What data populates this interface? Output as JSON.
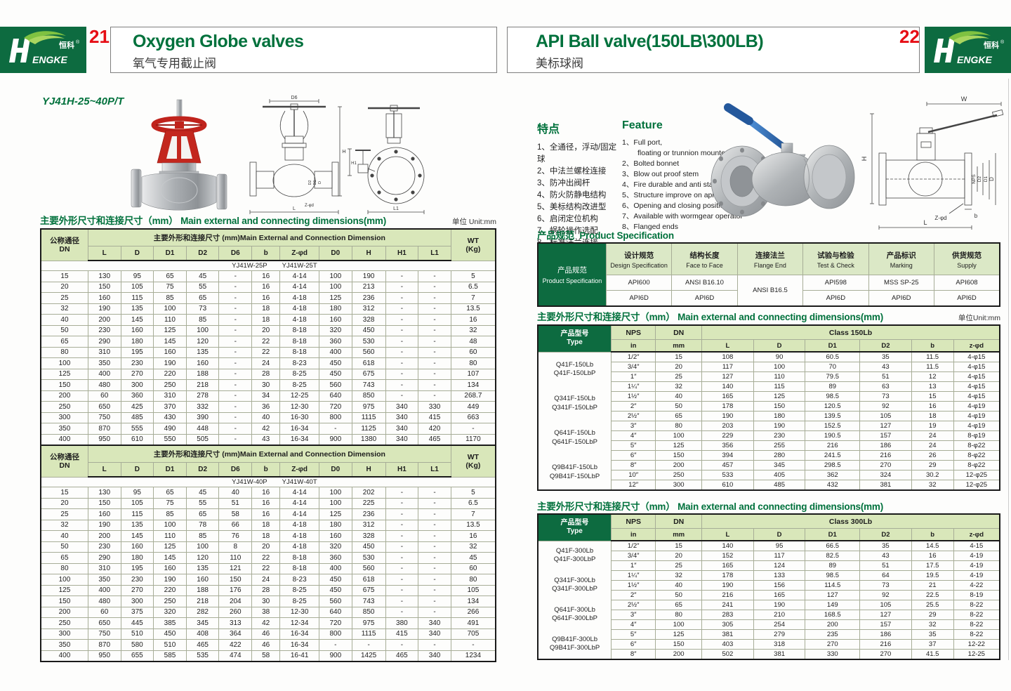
{
  "brand": {
    "logo_cn": "恒科",
    "reg": "®",
    "logo_en": "ENGKE"
  },
  "left_page": {
    "number": "21",
    "title": "Oxygen Globe valves",
    "subtitle": "氧气专用截止阀",
    "model_code": "YJ41H-25~40P/T",
    "dim_title_cn": "主要外形尺寸和连接尺寸（mm）",
    "dim_title_en": "Main external and connecting dimensions(mm)",
    "unit": "单位 Unit:mm",
    "table": {
      "dn_header_cn": "公称通径",
      "dn_header_en": "DN",
      "group_header": "主要外形和连接尺寸 (mm)Main External and Connection Dimension",
      "wt_header": "WT",
      "wt_header2": "(Kg)",
      "columns": [
        "L",
        "D",
        "D1",
        "D2",
        "D6",
        "b",
        "Z-φd",
        "D0",
        "H",
        "H1",
        "L1"
      ],
      "sections": [
        {
          "model_p": "YJ41W-25P",
          "model_t": "YJ41W-25T",
          "rows": [
            [
              "15",
              "130",
              "95",
              "65",
              "45",
              "-",
              "16",
              "4-14",
              "100",
              "190",
              "-",
              "-",
              "5"
            ],
            [
              "20",
              "150",
              "105",
              "75",
              "55",
              "-",
              "16",
              "4-14",
              "100",
              "213",
              "-",
              "-",
              "6.5"
            ],
            [
              "25",
              "160",
              "115",
              "85",
              "65",
              "-",
              "16",
              "4-18",
              "125",
              "236",
              "-",
              "-",
              "7"
            ],
            [
              "32",
              "190",
              "135",
              "100",
              "73",
              "-",
              "18",
              "4-18",
              "180",
              "312",
              "-",
              "-",
              "13.5"
            ],
            [
              "40",
              "200",
              "145",
              "110",
              "85",
              "-",
              "18",
              "4-18",
              "160",
              "328",
              "-",
              "-",
              "16"
            ],
            [
              "50",
              "230",
              "160",
              "125",
              "100",
              "-",
              "20",
              "8-18",
              "320",
              "450",
              "-",
              "-",
              "32"
            ],
            [
              "65",
              "290",
              "180",
              "145",
              "120",
              "-",
              "22",
              "8-18",
              "360",
              "530",
              "-",
              "-",
              "48"
            ],
            [
              "80",
              "310",
              "195",
              "160",
              "135",
              "-",
              "22",
              "8-18",
              "400",
              "560",
              "-",
              "-",
              "60"
            ],
            [
              "100",
              "350",
              "230",
              "190",
              "160",
              "-",
              "24",
              "8-23",
              "450",
              "618",
              "-",
              "-",
              "80"
            ],
            [
              "125",
              "400",
              "270",
              "220",
              "188",
              "-",
              "28",
              "8-25",
              "450",
              "675",
              "-",
              "-",
              "107"
            ],
            [
              "150",
              "480",
              "300",
              "250",
              "218",
              "-",
              "30",
              "8-25",
              "560",
              "743",
              "-",
              "-",
              "134"
            ],
            [
              "200",
              "60",
              "360",
              "310",
              "278",
              "-",
              "34",
              "12-25",
              "640",
              "850",
              "-",
              "-",
              "268.7"
            ],
            [
              "250",
              "650",
              "425",
              "370",
              "332",
              "-",
              "36",
              "12-30",
              "720",
              "975",
              "340",
              "330",
              "449"
            ],
            [
              "300",
              "750",
              "485",
              "430",
              "390",
              "-",
              "40",
              "16-30",
              "800",
              "1115",
              "340",
              "415",
              "663"
            ],
            [
              "350",
              "870",
              "555",
              "490",
              "448",
              "-",
              "42",
              "16-34",
              "-",
              "1125",
              "340",
              "420",
              "-"
            ],
            [
              "400",
              "950",
              "610",
              "550",
              "505",
              "-",
              "43",
              "16-34",
              "900",
              "1380",
              "340",
              "465",
              "1170"
            ]
          ]
        },
        {
          "model_p": "YJ41W-40P",
          "model_t": "YJ41W-40T",
          "rows": [
            [
              "15",
              "130",
              "95",
              "65",
              "45",
              "40",
              "16",
              "4-14",
              "100",
              "202",
              "-",
              "-",
              "5"
            ],
            [
              "20",
              "150",
              "105",
              "75",
              "55",
              "51",
              "16",
              "4-14",
              "100",
              "225",
              "-",
              "-",
              "6.5"
            ],
            [
              "25",
              "160",
              "115",
              "85",
              "65",
              "58",
              "16",
              "4-14",
              "125",
              "236",
              "-",
              "-",
              "7"
            ],
            [
              "32",
              "190",
              "135",
              "100",
              "78",
              "66",
              "18",
              "4-18",
              "180",
              "312",
              "-",
              "-",
              "13.5"
            ],
            [
              "40",
              "200",
              "145",
              "110",
              "85",
              "76",
              "18",
              "4-18",
              "160",
              "328",
              "-",
              "-",
              "16"
            ],
            [
              "50",
              "230",
              "160",
              "125",
              "100",
              "8",
              "20",
              "4-18",
              "320",
              "450",
              "-",
              "-",
              "32"
            ],
            [
              "65",
              "290",
              "180",
              "145",
              "120",
              "110",
              "22",
              "8-18",
              "360",
              "530",
              "-",
              "-",
              "45"
            ],
            [
              "80",
              "310",
              "195",
              "160",
              "135",
              "121",
              "22",
              "8-18",
              "400",
              "560",
              "-",
              "-",
              "60"
            ],
            [
              "100",
              "350",
              "230",
              "190",
              "160",
              "150",
              "24",
              "8-23",
              "450",
              "618",
              "-",
              "-",
              "80"
            ],
            [
              "125",
              "400",
              "270",
              "220",
              "188",
              "176",
              "28",
              "8-25",
              "450",
              "675",
              "-",
              "-",
              "105"
            ],
            [
              "150",
              "480",
              "300",
              "250",
              "218",
              "204",
              "30",
              "8-25",
              "560",
              "743",
              "-",
              "-",
              "134"
            ],
            [
              "200",
              "60",
              "375",
              "320",
              "282",
              "260",
              "38",
              "12-30",
              "640",
              "850",
              "-",
              "-",
              "266"
            ],
            [
              "250",
              "650",
              "445",
              "385",
              "345",
              "313",
              "42",
              "12-34",
              "720",
              "975",
              "380",
              "340",
              "491"
            ],
            [
              "300",
              "750",
              "510",
              "450",
              "408",
              "364",
              "46",
              "16-34",
              "800",
              "1115",
              "415",
              "340",
              "705"
            ],
            [
              "350",
              "870",
              "580",
              "510",
              "465",
              "422",
              "46",
              "16-34",
              "-",
              "-",
              "-",
              "-",
              "-"
            ],
            [
              "400",
              "950",
              "655",
              "585",
              "535",
              "474",
              "58",
              "16-41",
              "900",
              "1425",
              "465",
              "340",
              "1234"
            ]
          ]
        }
      ]
    },
    "drawing_labels": {
      "d6": "D6",
      "h": "H",
      "l": "L",
      "zd": "Z-φd",
      "d2": "D2",
      "d1": "D1",
      "d": "D",
      "h1": "H1",
      "l1": "L1"
    }
  },
  "right_page": {
    "number": "22",
    "title": "API Ball valve(150LB\\300LB)",
    "subtitle": "美标球阀",
    "features_cn": {
      "title": "特点",
      "items": [
        "1、全通径，浮动/固定球",
        "2、中法兰螺栓连接",
        "3、防冲出阀杆",
        "4、防火防静电结构",
        "5、美标结构改进型",
        "6、启闭定位机构",
        "7、蜗轮操作选配",
        "8、标准法兰连接"
      ]
    },
    "features_en": {
      "title": "Feature",
      "items": [
        {
          "num": "1、",
          "lines": [
            "Full port,",
            "floating or trunnion mounte type"
          ]
        },
        {
          "num": "2、",
          "lines": [
            "Bolted bonnet"
          ]
        },
        {
          "num": "3、",
          "lines": [
            "Blow out proof stem"
          ]
        },
        {
          "num": "4、",
          "lines": [
            "Fire durable and anti static safety"
          ]
        },
        {
          "num": "5、",
          "lines": [
            "Structure improve on api"
          ]
        },
        {
          "num": "6、",
          "lines": [
            "Opening and closing position"
          ]
        },
        {
          "num": "7、",
          "lines": [
            "Available with wormgear operator"
          ]
        },
        {
          "num": "8、",
          "lines": [
            "Flanged ends"
          ]
        }
      ]
    },
    "spec": {
      "title_cn": "产品规范",
      "title_en": "Product Specification",
      "row_label_cn": "产品规范",
      "row_label_en": "Product Specification",
      "columns": [
        {
          "cn": "设计规范",
          "en": "Design Specification",
          "v1": "API600",
          "v2": "API6D"
        },
        {
          "cn": "结构长度",
          "en": "Face to Face",
          "v1": "ANSI B16.10",
          "v2": "API6D"
        },
        {
          "cn": "连接法兰",
          "en": "Flange End",
          "merged": "ANSI B16.5"
        },
        {
          "cn": "试验与检验",
          "en": "Test & Check",
          "v1": "API598",
          "v2": "API6D"
        },
        {
          "cn": "产品标识",
          "en": "Marking",
          "v1": "MSS SP-25",
          "v2": "API6D"
        },
        {
          "cn": "供货规范",
          "en": "Supply",
          "v1": "API608",
          "v2": "API6D"
        }
      ]
    },
    "dim_title_cn": "主要外形尺寸和连接尺寸（mm）",
    "dim_title_en": "Main external and connecting dimensions(mm)",
    "unit": "单位Unit:mm",
    "table150": {
      "type_header_cn": "产品型号",
      "type_header_en": "Type",
      "nps": "NPS",
      "nps_unit": "in",
      "dn": "DN",
      "dn_unit": "mm",
      "class_label": "Class 150Lb",
      "columns": [
        "L",
        "D",
        "D1",
        "D2",
        "b",
        "z-φd"
      ],
      "type_groups": [
        [
          "Q41F-150Lb",
          "Q41F-150LbP"
        ],
        [
          "Q341F-150Lb",
          "Q341F-150LbP"
        ],
        [
          "Q641F-150Lb",
          "Q641F-150LbP"
        ],
        [
          "Q9B41F-150Lb",
          "Q9B41F-150LbP"
        ]
      ],
      "rows": [
        [
          "1/2″",
          "15",
          "108",
          "90",
          "60.5",
          "35",
          "11.5",
          "4-φ15"
        ],
        [
          "3/4″",
          "20",
          "117",
          "100",
          "70",
          "43",
          "11.5",
          "4-φ15"
        ],
        [
          "1″",
          "25",
          "127",
          "110",
          "79.5",
          "51",
          "12",
          "4-φ15"
        ],
        [
          "1¼″",
          "32",
          "140",
          "115",
          "89",
          "63",
          "13",
          "4-φ15"
        ],
        [
          "1½″",
          "40",
          "165",
          "125",
          "98.5",
          "73",
          "15",
          "4-φ15"
        ],
        [
          "2″",
          "50",
          "178",
          "150",
          "120.5",
          "92",
          "16",
          "4-φ19"
        ],
        [
          "2½″",
          "65",
          "190",
          "180",
          "139.5",
          "105",
          "18",
          "4-φ19"
        ],
        [
          "3″",
          "80",
          "203",
          "190",
          "152.5",
          "127",
          "19",
          "4-φ19"
        ],
        [
          "4″",
          "100",
          "229",
          "230",
          "190.5",
          "157",
          "24",
          "8-φ19"
        ],
        [
          "5″",
          "125",
          "356",
          "255",
          "216",
          "186",
          "24",
          "8-φ22"
        ],
        [
          "6″",
          "150",
          "394",
          "280",
          "241.5",
          "216",
          "26",
          "8-φ22"
        ],
        [
          "8″",
          "200",
          "457",
          "345",
          "298.5",
          "270",
          "29",
          "8-φ22"
        ],
        [
          "10″",
          "250",
          "533",
          "405",
          "362",
          "324",
          "30.2",
          "12-φ25"
        ],
        [
          "12″",
          "300",
          "610",
          "485",
          "432",
          "381",
          "32",
          "12-φ25"
        ]
      ]
    },
    "table300": {
      "type_header_cn": "产品型号",
      "type_header_en": "Type",
      "nps": "NPS",
      "nps_unit": "in",
      "dn": "DN",
      "dn_unit": "mm",
      "class_label": "Class 300Lb",
      "columns": [
        "L",
        "D",
        "D1",
        "D2",
        "b",
        "z-φd"
      ],
      "type_groups": [
        [
          "Q41F-300Lb",
          "Q41F-300LbP"
        ],
        [
          "Q341F-300Lb",
          "Q341F-300LbP"
        ],
        [
          "Q641F-300Lb",
          "Q641F-300LbP"
        ],
        [
          "Q9B41F-300Lb",
          "Q9B41F-300LbP"
        ]
      ],
      "rows": [
        [
          "1/2″",
          "15",
          "140",
          "95",
          "66.5",
          "35",
          "14.5",
          "4-15"
        ],
        [
          "3/4″",
          "20",
          "152",
          "117",
          "82.5",
          "43",
          "16",
          "4-19"
        ],
        [
          "1″",
          "25",
          "165",
          "124",
          "89",
          "51",
          "17.5",
          "4-19"
        ],
        [
          "1¼″",
          "32",
          "178",
          "133",
          "98.5",
          "64",
          "19.5",
          "4-19"
        ],
        [
          "1½″",
          "40",
          "190",
          "156",
          "114.5",
          "73",
          "21",
          "4-22"
        ],
        [
          "2″",
          "50",
          "216",
          "165",
          "127",
          "92",
          "22.5",
          "8-19"
        ],
        [
          "2½″",
          "65",
          "241",
          "190",
          "149",
          "105",
          "25.5",
          "8-22"
        ],
        [
          "3″",
          "80",
          "283",
          "210",
          "168.5",
          "127",
          "29",
          "8-22"
        ],
        [
          "4″",
          "100",
          "305",
          "254",
          "200",
          "157",
          "32",
          "8-22"
        ],
        [
          "5″",
          "125",
          "381",
          "279",
          "235",
          "186",
          "35",
          "8-22"
        ],
        [
          "6″",
          "150",
          "403",
          "318",
          "270",
          "216",
          "37",
          "12-22"
        ],
        [
          "8″",
          "200",
          "502",
          "381",
          "330",
          "270",
          "41.5",
          "12-25"
        ]
      ]
    },
    "drawing_labels": {
      "w": "W",
      "h": "H",
      "nps": "NPS",
      "d2": "D2",
      "d1": "D1",
      "d": "D",
      "zd": "Z-φd",
      "b": "b",
      "l": "L"
    }
  }
}
